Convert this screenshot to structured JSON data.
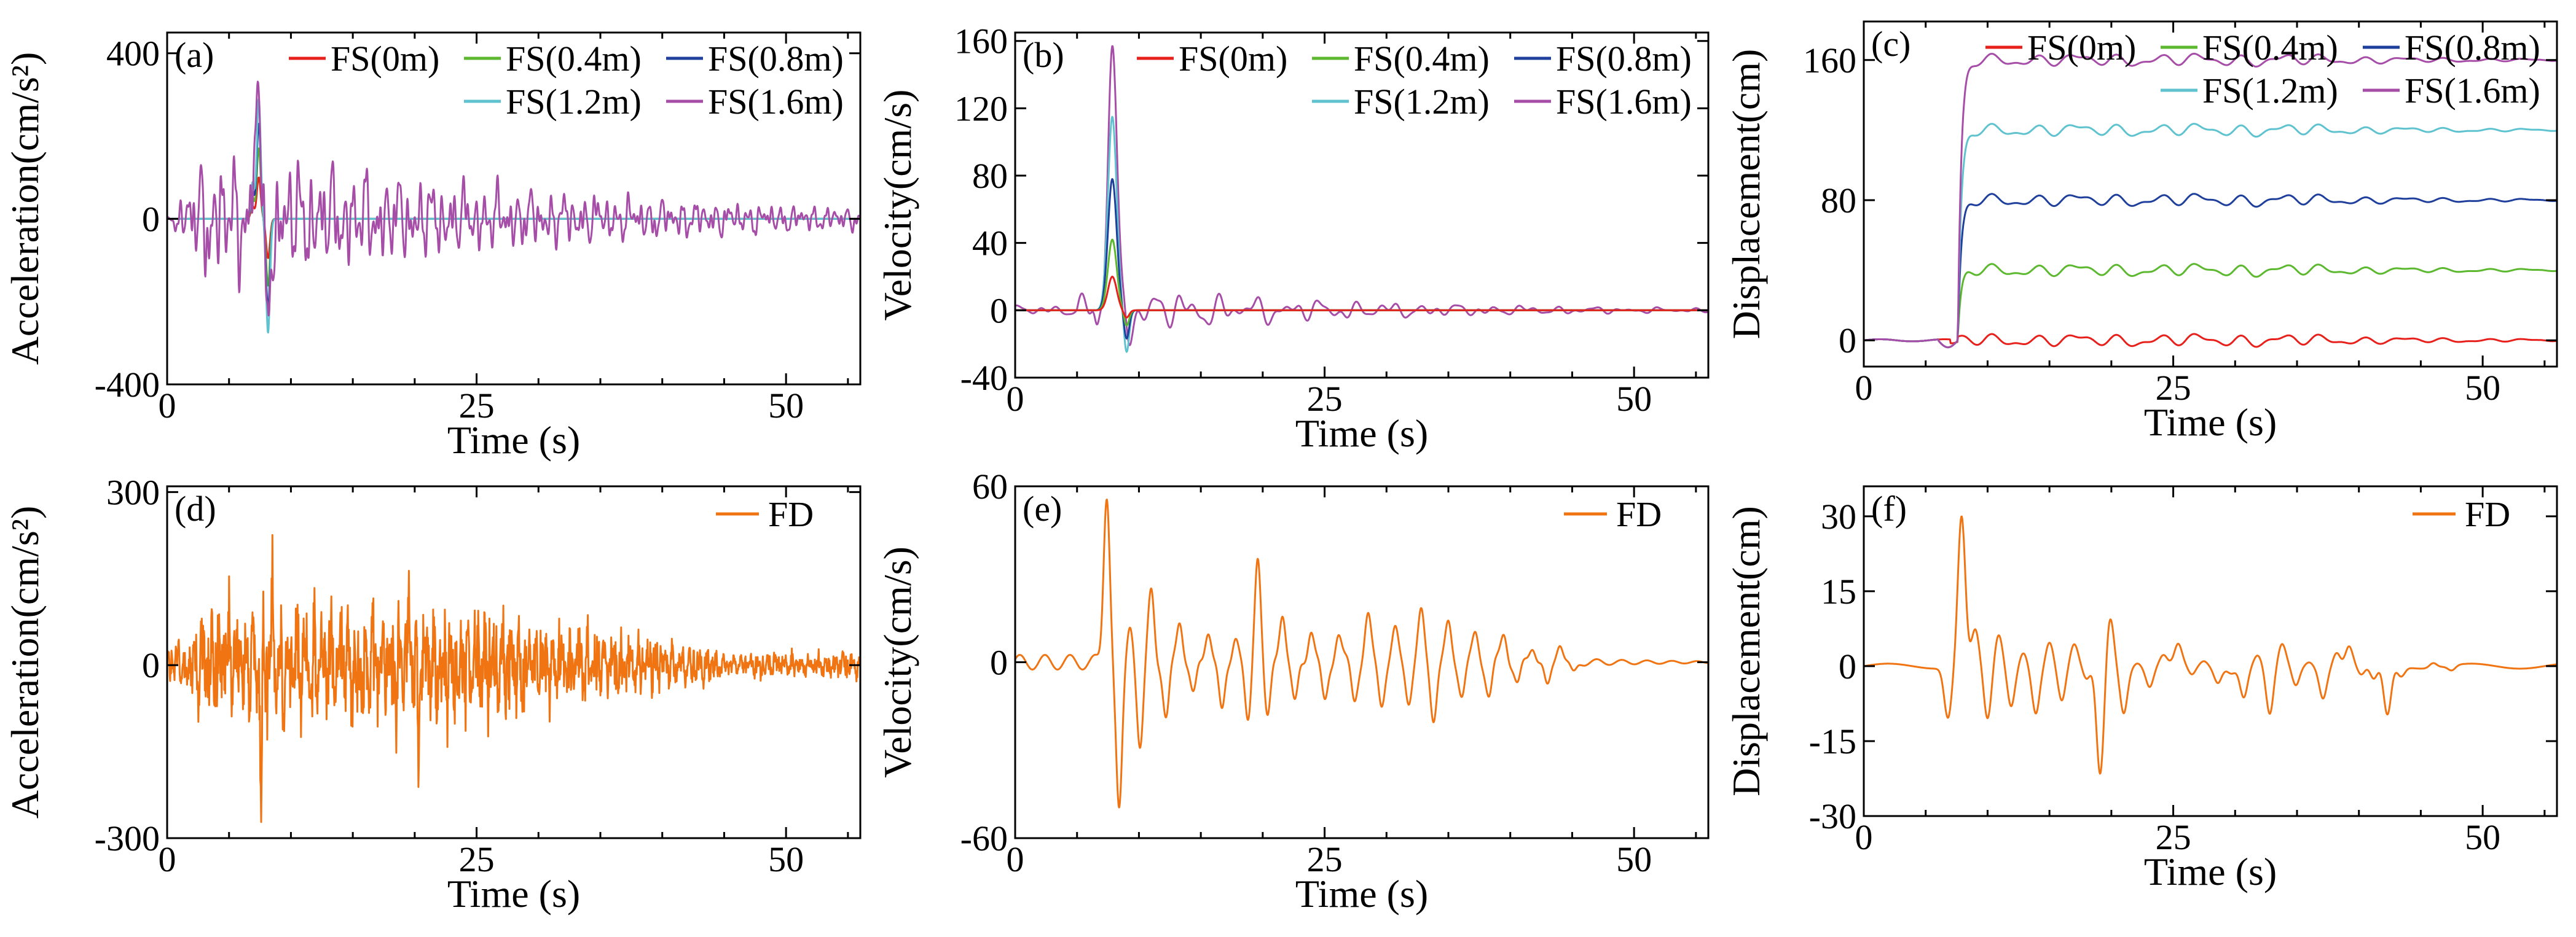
{
  "colors": {
    "FS(0m)": "#e8201c",
    "FS(0.4m)": "#5cb82e",
    "FS(0.8m)": "#1f3f9c",
    "FS(1.2m)": "#5fc3cf",
    "FS(1.6m)": "#a64da8",
    "FD": "#f07412"
  },
  "chart_data": [
    {
      "panel": "(a)",
      "type": "line",
      "kind": "acc",
      "xlabel": "Time (s)",
      "ylabel": "Acceleration(cm/s²)",
      "xlim": [
        0,
        56
      ],
      "ylim": [
        -400,
        450
      ],
      "xticks": [
        0,
        25,
        50
      ],
      "yticks": [
        -400,
        0,
        400
      ],
      "series": [
        {
          "name": "FS(0m)",
          "peak": 100
        },
        {
          "name": "FS(0.4m)",
          "peak": 170
        },
        {
          "name": "FS(0.8m)",
          "peak": 230
        },
        {
          "name": "FS(1.2m)",
          "peak": 290
        },
        {
          "name": "FS(1.6m)",
          "peak": 360
        }
      ]
    },
    {
      "panel": "(b)",
      "type": "line",
      "kind": "vel",
      "xlabel": "Time (s)",
      "ylabel": "Velocity(cm/s)",
      "xlim": [
        0,
        56
      ],
      "ylim": [
        -40,
        165
      ],
      "xticks": [
        0,
        25,
        50
      ],
      "yticks": [
        -40,
        0,
        40,
        80,
        120,
        160
      ],
      "series": [
        {
          "name": "FS(0m)",
          "peak": 20
        },
        {
          "name": "FS(0.4m)",
          "peak": 42
        },
        {
          "name": "FS(0.8m)",
          "peak": 78
        },
        {
          "name": "FS(1.2m)",
          "peak": 115
        },
        {
          "name": "FS(1.6m)",
          "peak": 155
        }
      ]
    },
    {
      "panel": "(c)",
      "type": "line",
      "kind": "disp",
      "xlabel": "Time (s)",
      "ylabel": "Displacement(cm)",
      "xlim": [
        0,
        56
      ],
      "ylim": [
        -15,
        182
      ],
      "xticks": [
        0,
        25,
        50
      ],
      "yticks": [
        0,
        80,
        160
      ],
      "series": [
        {
          "name": "FS(0m)",
          "level": 0
        },
        {
          "name": "FS(0.4m)",
          "level": 40
        },
        {
          "name": "FS(0.8m)",
          "level": 80
        },
        {
          "name": "FS(1.2m)",
          "level": 120
        },
        {
          "name": "FS(1.6m)",
          "level": 160
        }
      ]
    },
    {
      "panel": "(d)",
      "type": "line",
      "kind": "acc",
      "xlabel": "Time (s)",
      "ylabel": "Acceleration(cm/s²)",
      "xlim": [
        0,
        56
      ],
      "ylim": [
        -300,
        310
      ],
      "xticks": [
        0,
        25,
        50
      ],
      "yticks": [
        -300,
        0,
        300
      ],
      "series": [
        {
          "name": "FD",
          "peak": 230,
          "trough": -280
        }
      ]
    },
    {
      "panel": "(e)",
      "type": "line",
      "kind": "vel",
      "xlabel": "Time (s)",
      "ylabel": "Velocity(cm/s)",
      "xlim": [
        0,
        56
      ],
      "ylim": [
        -60,
        60
      ],
      "xticks": [
        0,
        25,
        50
      ],
      "yticks": [
        -60,
        0,
        60
      ],
      "series": [
        {
          "name": "FD",
          "peak": 58,
          "trough": -52
        }
      ]
    },
    {
      "panel": "(f)",
      "type": "line",
      "kind": "disp",
      "xlabel": "Time (s)",
      "ylabel": "Displacement(cm)",
      "xlim": [
        0,
        56
      ],
      "ylim": [
        -30,
        36
      ],
      "xticks": [
        0,
        25,
        50
      ],
      "yticks": [
        -30,
        -15,
        0,
        15,
        30
      ],
      "series": [
        {
          "name": "FD",
          "peak": 30,
          "trough": -24
        }
      ]
    }
  ]
}
